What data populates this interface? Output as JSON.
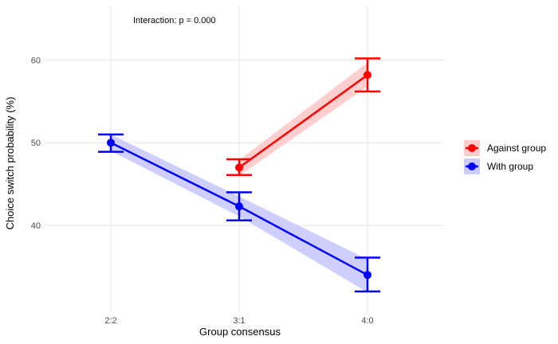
{
  "chart_data": {
    "type": "line",
    "title": "",
    "xlabel": "Group consensus",
    "ylabel": "Choice switch probability (%)",
    "categories": [
      "2:2",
      "3:1",
      "4:0"
    ],
    "y_ticks": [
      40,
      50,
      60
    ],
    "ylim": [
      29.5,
      66.5
    ],
    "grid": true,
    "legend_position": "right",
    "annotation": "Interaction: p = 0.000",
    "series": [
      {
        "name": "Against group",
        "color": "#ff0000",
        "band_color": "#ffcccc",
        "x": [
          "3:1",
          "4:0"
        ],
        "y": [
          47.0,
          58.2
        ],
        "err_low": [
          46.1,
          56.2
        ],
        "err_high": [
          48.0,
          60.2
        ],
        "band_low": [
          46.0,
          56.8
        ],
        "band_high": [
          47.9,
          59.7
        ]
      },
      {
        "name": "With group",
        "color": "#0000ff",
        "band_color": "#ccccff",
        "x": [
          "2:2",
          "3:1",
          "4:0"
        ],
        "y": [
          50.0,
          42.3,
          34.0
        ],
        "err_low": [
          48.9,
          40.6,
          32.0
        ],
        "err_high": [
          51.0,
          44.0,
          36.1
        ],
        "band_low": [
          49.0,
          41.1,
          31.9
        ],
        "band_high": [
          51.0,
          43.5,
          35.9
        ]
      }
    ]
  }
}
